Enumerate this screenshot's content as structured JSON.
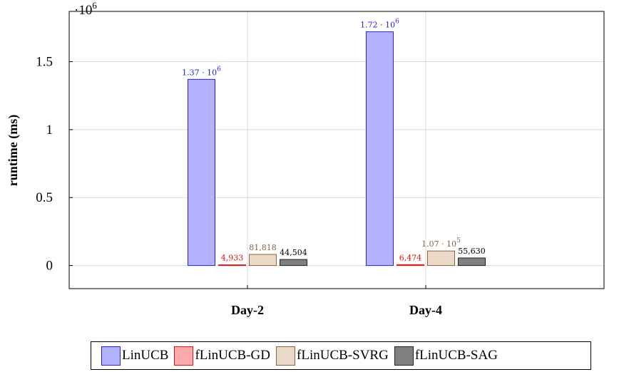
{
  "chart_data": {
    "type": "bar",
    "categories": [
      "Day-2",
      "Day-4"
    ],
    "ylabel": "runtime (ms)",
    "y_scale_label": "·10",
    "y_scale_exponent": "6",
    "ylim": [
      -0.17,
      1.87
    ],
    "yticks": [
      {
        "value": 0,
        "label": "0"
      },
      {
        "value": 0.5,
        "label": "0.5"
      },
      {
        "value": 1,
        "label": "1"
      },
      {
        "value": 1.5,
        "label": "1.5"
      }
    ],
    "grid": true,
    "legend_position": "bottom",
    "series": [
      {
        "name": "LinUCB",
        "values": [
          1.37,
          1.72
        ],
        "labels": [
          {
            "text": "1.37 · 10",
            "sup": "6"
          },
          {
            "text": "1.72 · 10",
            "sup": "6"
          }
        ],
        "fill": "#b3b3ff",
        "stroke": "#2222dd",
        "label_color": "#2222dd"
      },
      {
        "name": "fLinUCB-GD",
        "values": [
          0.004933,
          0.006474
        ],
        "labels": [
          {
            "text": "4,933",
            "sup": ""
          },
          {
            "text": "6,474",
            "sup": ""
          }
        ],
        "fill": "#ffaaaa",
        "stroke": "#dd1111",
        "label_color": "#dd1111"
      },
      {
        "name": "fLinUCB-SVRG",
        "values": [
          0.081818,
          0.107
        ],
        "labels": [
          {
            "text": "81,818",
            "sup": ""
          },
          {
            "text": "1.07 · 10",
            "sup": "5"
          }
        ],
        "fill": "#ead9c6",
        "stroke": "#8b6240",
        "label_color": "#8b6240"
      },
      {
        "name": "fLinUCB-SAG",
        "values": [
          0.044504,
          0.05563
        ],
        "labels": [
          {
            "text": "44,504",
            "sup": ""
          },
          {
            "text": "55,630",
            "sup": ""
          }
        ],
        "fill": "#808080",
        "stroke": "#222222",
        "label_color": "#000000"
      }
    ]
  }
}
